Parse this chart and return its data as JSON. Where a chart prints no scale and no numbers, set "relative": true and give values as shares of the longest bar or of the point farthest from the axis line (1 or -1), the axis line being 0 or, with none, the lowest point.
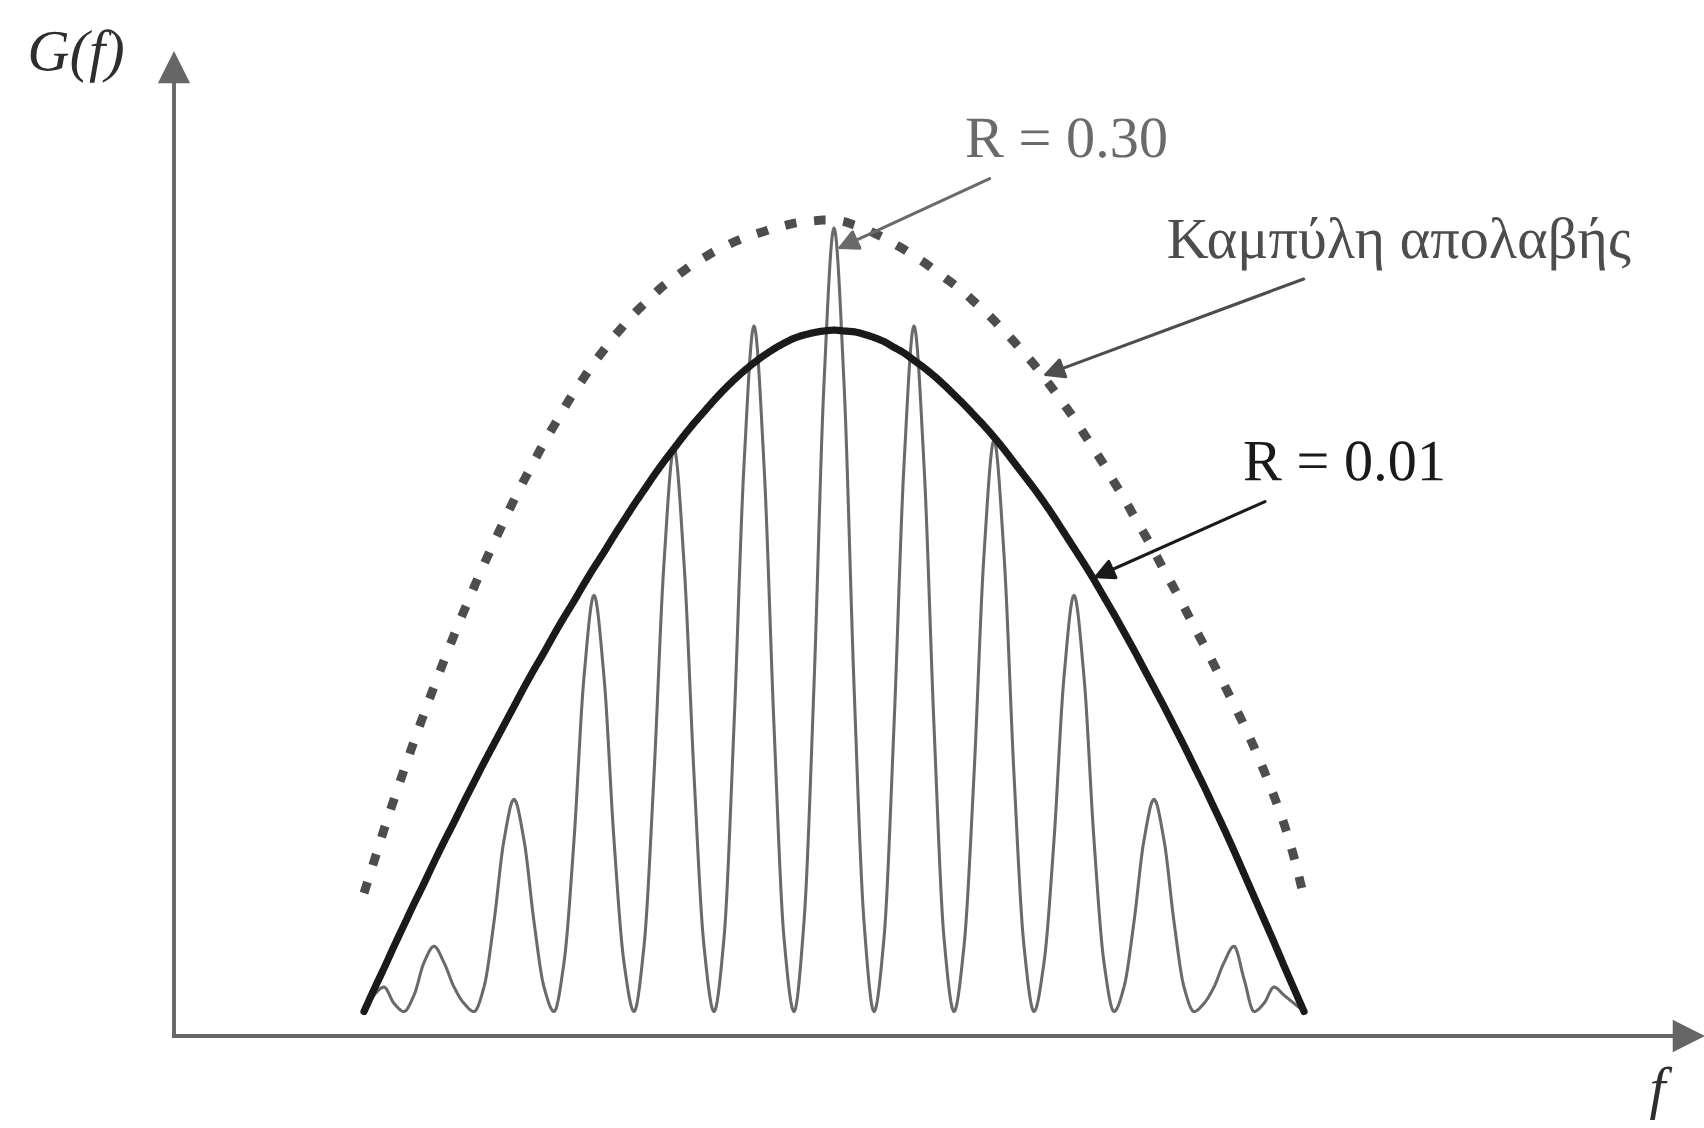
{
  "chart_data": {
    "type": "line",
    "ylabel": "G(f)",
    "xlabel": "f",
    "relative": true,
    "line_style": "solid",
    "categories": [
      null,
      null,
      null,
      null,
      null,
      null,
      null,
      null,
      null,
      null,
      null,
      null,
      null,
      null,
      null,
      null,
      null,
      null,
      null,
      null,
      null,
      null,
      null,
      null,
      null,
      null,
      null,
      null,
      null,
      null,
      null,
      null,
      null,
      null,
      null,
      null,
      null,
      null,
      null,
      null,
      null,
      null,
      null,
      null,
      null,
      null,
      null,
      null,
      null,
      null,
      null,
      null,
      null,
      null,
      null,
      null,
      null,
      null,
      null,
      null,
      null,
      null,
      null,
      null,
      null,
      null,
      null,
      null,
      null,
      null,
      null,
      null,
      null,
      null,
      null,
      null,
      null,
      null,
      null,
      null,
      null,
      null,
      null,
      null,
      null,
      null,
      null,
      null,
      null,
      null,
      null,
      null,
      null,
      null,
      null,
      null,
      null,
      null,
      null,
      null,
      null,
      null,
      null,
      null,
      null,
      null,
      null,
      null,
      null,
      null,
      null,
      null,
      null,
      null,
      null,
      null,
      null,
      null,
      null,
      null,
      null,
      null,
      null,
      null,
      null,
      null,
      null,
      null,
      null,
      null,
      null,
      null,
      null,
      null,
      null,
      null,
      null,
      null,
      null,
      null,
      null,
      null,
      null,
      null,
      null,
      null,
      null,
      null,
      null,
      null,
      null
    ],
    "series": [
      {
        "name": "R = 0.30",
        "color": "#6a6a6a",
        "values": [
          null,
          null,
          null,
          null,
          null,
          null,
          null,
          null,
          null,
          null,
          null,
          null,
          null,
          null,
          null,
          null,
          null,
          null,
          null,
          0.03,
          0.05,
          0.06,
          0.04,
          0.03,
          0.05,
          0.09,
          0.11,
          0.09,
          0.06,
          0.04,
          0.03,
          0.06,
          0.14,
          0.24,
          0.29,
          0.24,
          0.14,
          0.06,
          0.03,
          0.09,
          0.24,
          0.44,
          0.54,
          0.44,
          0.24,
          0.09,
          0.03,
          0.11,
          0.32,
          0.58,
          0.72,
          0.58,
          0.32,
          0.11,
          0.03,
          0.12,
          0.38,
          0.7,
          0.87,
          0.7,
          0.38,
          0.12,
          0.03,
          0.14,
          0.43,
          0.8,
          0.99,
          0.8,
          0.43,
          0.14,
          0.03,
          0.12,
          0.38,
          0.7,
          0.87,
          0.7,
          0.38,
          0.12,
          0.03,
          0.11,
          0.32,
          0.59,
          0.73,
          0.59,
          0.32,
          0.11,
          0.03,
          0.09,
          0.24,
          0.44,
          0.54,
          0.44,
          0.24,
          0.09,
          0.03,
          0.06,
          0.14,
          0.24,
          0.29,
          0.24,
          0.14,
          0.06,
          0.03,
          0.04,
          0.06,
          0.09,
          0.11,
          0.07,
          0.03,
          0.04,
          0.06,
          0.05,
          0.04,
          0.03,
          null,
          null,
          null,
          null,
          null,
          null,
          null,
          null,
          null,
          null,
          null,
          null,
          null,
          null,
          null,
          null,
          null,
          null,
          null,
          null,
          null,
          null,
          null,
          null,
          null,
          null,
          null,
          null,
          null,
          null,
          null,
          null,
          null,
          null,
          null,
          null,
          null
        ]
      },
      {
        "name": "R = 0.01",
        "color": "#1a1a1a",
        "values": [
          null,
          null,
          null,
          null,
          null,
          null,
          null,
          null,
          null,
          null,
          null,
          null,
          null,
          null,
          null,
          null,
          null,
          null,
          null,
          0.03,
          0.057,
          0.083,
          0.11,
          0.136,
          0.162,
          0.187,
          0.213,
          0.238,
          0.262,
          0.287,
          0.311,
          0.335,
          0.358,
          0.381,
          0.404,
          0.427,
          0.449,
          0.47,
          0.492,
          0.513,
          0.533,
          0.554,
          0.574,
          0.593,
          0.613,
          0.632,
          0.651,
          0.669,
          0.687,
          0.704,
          0.72,
          0.736,
          0.751,
          0.765,
          0.779,
          0.792,
          0.804,
          0.815,
          0.825,
          0.834,
          0.842,
          0.849,
          0.855,
          0.859,
          0.862,
          0.864,
          0.865,
          0.864,
          0.863,
          0.86,
          0.856,
          0.851,
          0.844,
          0.837,
          0.828,
          0.819,
          0.809,
          0.798,
          0.786,
          0.774,
          0.761,
          0.748,
          0.734,
          0.719,
          0.703,
          0.687,
          0.671,
          0.654,
          0.636,
          0.617,
          0.598,
          0.579,
          0.559,
          0.538,
          0.517,
          0.495,
          0.473,
          0.45,
          0.427,
          0.404,
          0.38,
          0.356,
          0.331,
          0.306,
          0.28,
          0.254,
          0.227,
          0.199,
          0.171,
          0.143,
          0.115,
          0.086,
          0.058,
          0.03,
          null,
          null,
          null,
          null,
          null,
          null,
          null,
          null,
          null,
          null,
          null,
          null,
          null,
          null,
          null,
          null,
          null,
          null,
          null,
          null,
          null,
          null,
          null,
          null,
          null,
          null,
          null,
          null,
          null,
          null,
          null,
          null,
          null,
          null,
          null,
          null,
          null
        ]
      },
      {
        "name": "Καμπύλη απολαβής",
        "color": "#4d4d4d",
        "line_style": "dotted",
        "values": [
          null,
          null,
          null,
          null,
          null,
          null,
          null,
          null,
          null,
          null,
          null,
          null,
          null,
          null,
          null,
          null,
          null,
          null,
          null,
          0.175,
          0.214,
          0.253,
          0.29,
          0.326,
          0.361,
          0.395,
          0.428,
          0.46,
          0.491,
          0.521,
          0.55,
          0.578,
          0.605,
          0.631,
          0.657,
          0.681,
          0.704,
          0.727,
          0.748,
          0.769,
          0.789,
          0.807,
          0.825,
          0.841,
          0.857,
          0.871,
          0.885,
          0.897,
          0.909,
          0.92,
          0.929,
          0.938,
          0.947,
          0.954,
          0.961,
          0.967,
          0.973,
          0.978,
          0.982,
          0.986,
          0.99,
          0.993,
          0.996,
          0.998,
          0.999,
          1.0,
          1.0,
          0.998,
          0.994,
          0.99,
          0.984,
          0.978,
          0.971,
          0.964,
          0.956,
          0.948,
          0.939,
          0.93,
          0.921,
          0.911,
          0.9,
          0.889,
          0.877,
          0.864,
          0.851,
          0.837,
          0.823,
          0.807,
          0.791,
          0.774,
          0.757,
          0.738,
          0.719,
          0.7,
          0.679,
          0.659,
          0.637,
          0.616,
          0.594,
          0.571,
          0.549,
          0.526,
          0.502,
          0.479,
          0.455,
          0.431,
          0.406,
          0.381,
          0.354,
          0.325,
          0.294,
          0.26,
          0.219,
          0.17,
          null,
          null,
          null,
          null,
          null,
          null,
          null,
          null,
          null,
          null,
          null,
          null,
          null,
          null,
          null,
          null,
          null,
          null,
          null,
          null,
          null,
          null,
          null,
          null,
          null,
          null,
          null,
          null,
          null,
          null,
          null,
          null,
          null,
          null,
          null,
          null,
          null
        ]
      }
    ]
  }
}
